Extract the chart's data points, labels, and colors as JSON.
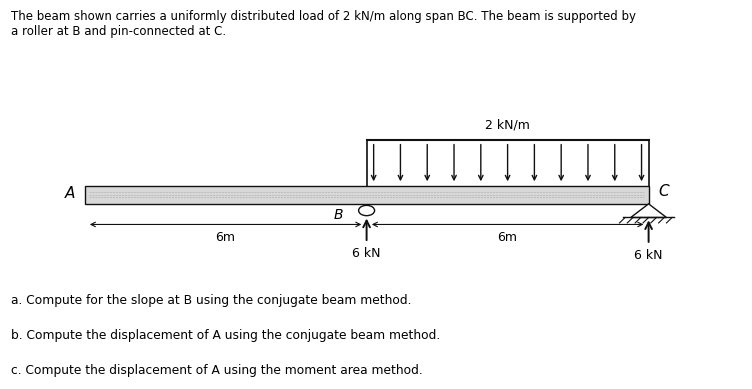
{
  "title_line1": "The beam shown carries a uniformly distributed load of 2 kN/m along span BC. The beam is supported by",
  "title_line2": "a roller at B and pin-connected at C.",
  "udl_label": "2 kN/m",
  "reaction_B_label": "6 kN",
  "reaction_C_label": "6 kN",
  "dim_AB": "6m",
  "dim_BC": "6m",
  "label_A": "A",
  "label_B": "B",
  "label_C": "C",
  "questions": [
    "a. Compute for the slope at B using the conjugate beam method.",
    "b. Compute the displacement of A using the conjugate beam method.",
    "c. Compute the displacement of A using the moment area method."
  ],
  "bg_color": "#ffffff",
  "beam_color": "#111111",
  "text_color": "#000000",
  "fig_w": 7.52,
  "fig_h": 3.89,
  "dpi": 100
}
